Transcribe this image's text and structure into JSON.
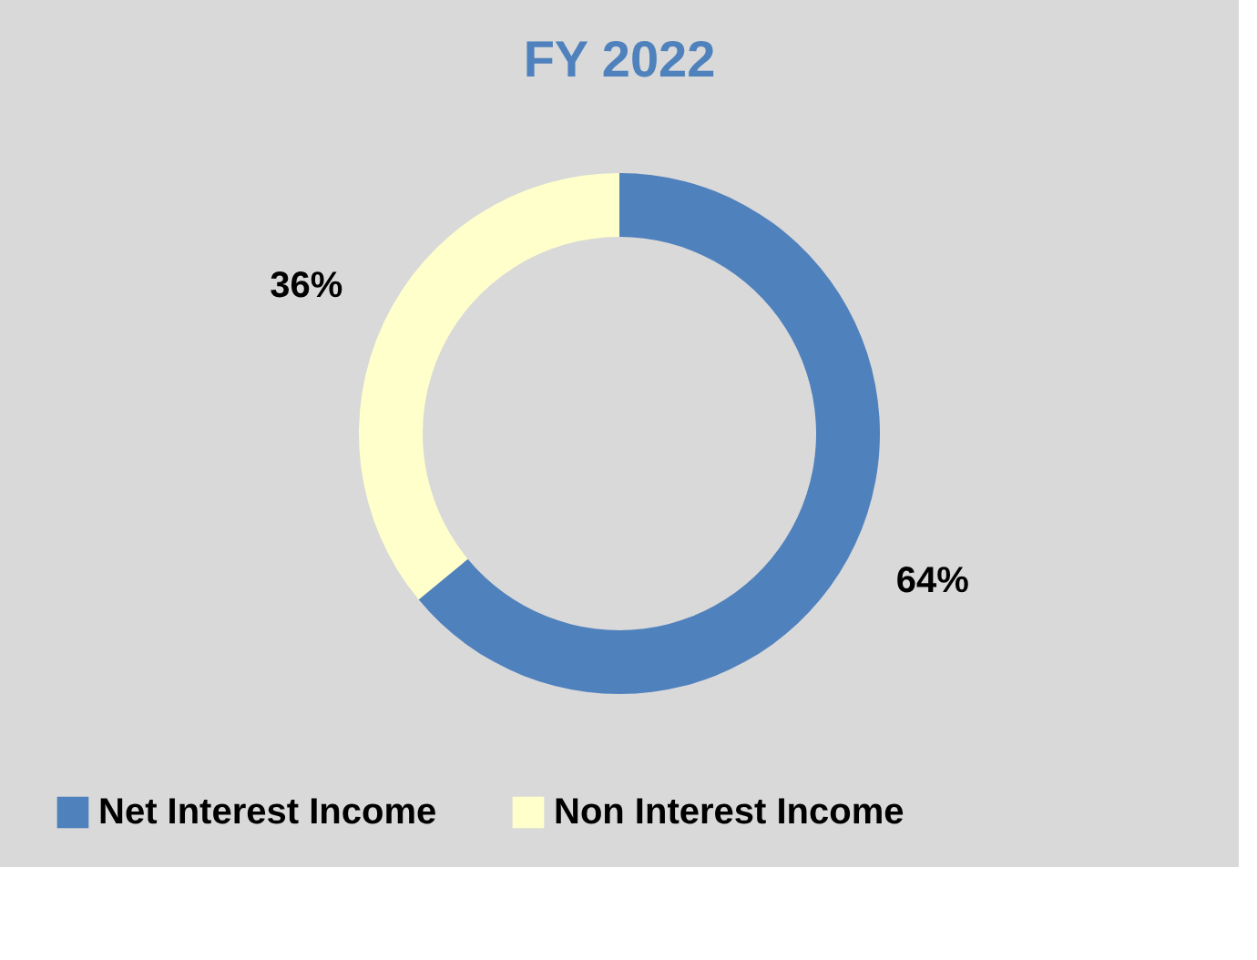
{
  "chart_data": {
    "type": "donut",
    "title": "FY 2022",
    "categories": [
      "Net Interest Income",
      "Non Interest Income"
    ],
    "values": [
      64,
      36
    ],
    "colors": [
      "#4f81bd",
      "#ffffcc"
    ],
    "value_labels": [
      "64%",
      "36%"
    ],
    "legend": "bottom"
  }
}
